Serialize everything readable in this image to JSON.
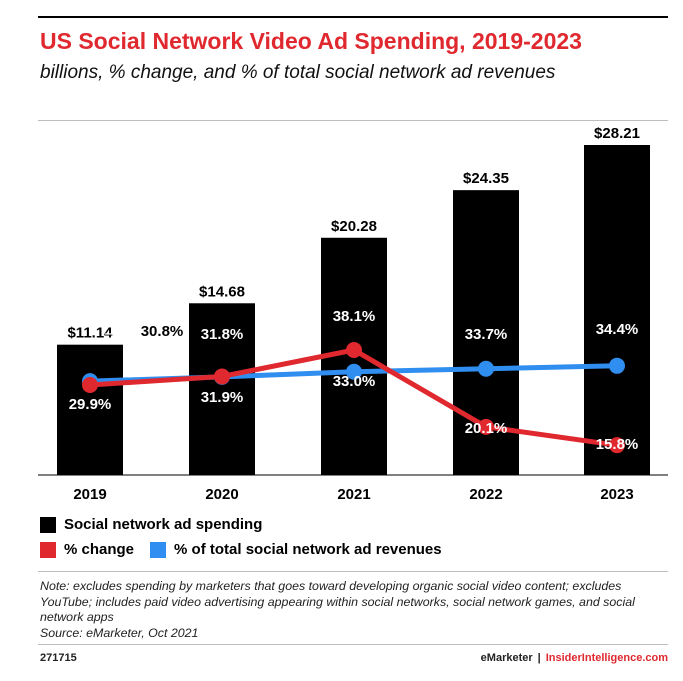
{
  "colors": {
    "title": "#e0282f",
    "bars": "#000000",
    "pct_change": "#e0282f",
    "pct_total": "#2f8ef0"
  },
  "chart_data": {
    "type": "bar",
    "title": "US Social Network Video Ad Spending, 2019-2023",
    "subtitle": "billions, % change, and % of total social network ad revenues",
    "categories": [
      "2019",
      "2020",
      "2021",
      "2022",
      "2023"
    ],
    "series": [
      {
        "name": "Social network ad spending",
        "type": "bar",
        "values": [
          11.14,
          14.68,
          20.28,
          24.35,
          28.21
        ],
        "labels": [
          "$11.14",
          "$14.68",
          "$20.28",
          "$24.35",
          "$28.21"
        ]
      },
      {
        "name": "% change",
        "type": "line",
        "values": [
          29.9,
          31.9,
          38.1,
          20.1,
          15.8
        ],
        "labels": [
          "29.9%",
          "31.9%",
          "38.1%",
          "20.1%",
          "15.8%"
        ]
      },
      {
        "name": "% of total social network ad revenues",
        "type": "line",
        "values": [
          30.8,
          31.8,
          33.0,
          33.7,
          34.4
        ],
        "labels": [
          "30.8%",
          "31.8%",
          "33.0%",
          "33.7%",
          "34.4%"
        ]
      }
    ],
    "grid": false,
    "legend_position": "bottom"
  },
  "note": "Note: excludes spending by marketers that goes toward developing organic social video content; excludes YouTube; includes paid video advertising appearing within social networks, social network games, and social network apps",
  "source": "Source: eMarketer, Oct 2021",
  "footer": {
    "chart_id": "271715",
    "brand_left": "eMarketer",
    "brand_sep": "|",
    "brand_right": "InsiderIntelligence.com"
  }
}
